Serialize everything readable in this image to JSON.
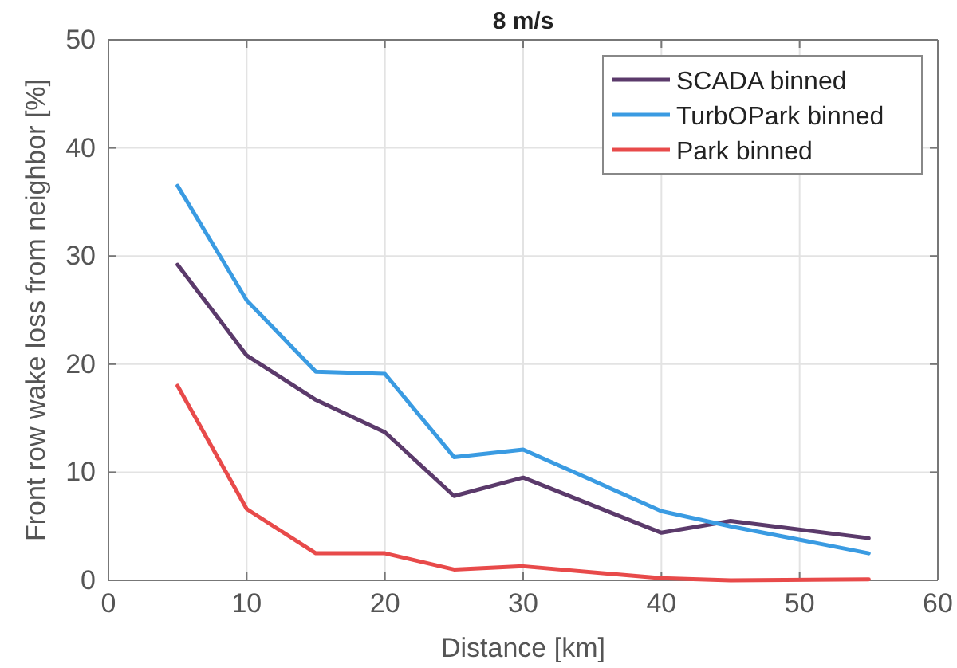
{
  "chart_data": {
    "type": "line",
    "title": "8 m/s",
    "xlabel": "Distance [km]",
    "ylabel": "Front row wake loss from neighbor [%]",
    "x": [
      5,
      10,
      15,
      20,
      25,
      30,
      40,
      45,
      55
    ],
    "series": [
      {
        "name": "SCADA binned",
        "color": "#5b3a6b",
        "values": [
          29.2,
          20.8,
          16.7,
          13.7,
          7.8,
          9.5,
          4.4,
          5.5,
          3.9
        ]
      },
      {
        "name": "TurbOPark binned",
        "color": "#3a9be2",
        "values": [
          36.5,
          25.9,
          19.3,
          19.1,
          11.4,
          12.1,
          6.4,
          5.0,
          2.5
        ]
      },
      {
        "name": "Park binned",
        "color": "#e84a4a",
        "values": [
          18.0,
          6.6,
          2.5,
          2.5,
          1.0,
          1.3,
          0.2,
          0.0,
          0.1
        ]
      }
    ],
    "xlim": [
      0,
      60
    ],
    "xticks": [
      0,
      10,
      20,
      30,
      40,
      50,
      60
    ],
    "ylim": [
      0,
      50
    ],
    "yticks": [
      0,
      10,
      20,
      30,
      40,
      50
    ],
    "grid": true,
    "legend": "top right",
    "line_style": "solid",
    "marker": "none"
  }
}
